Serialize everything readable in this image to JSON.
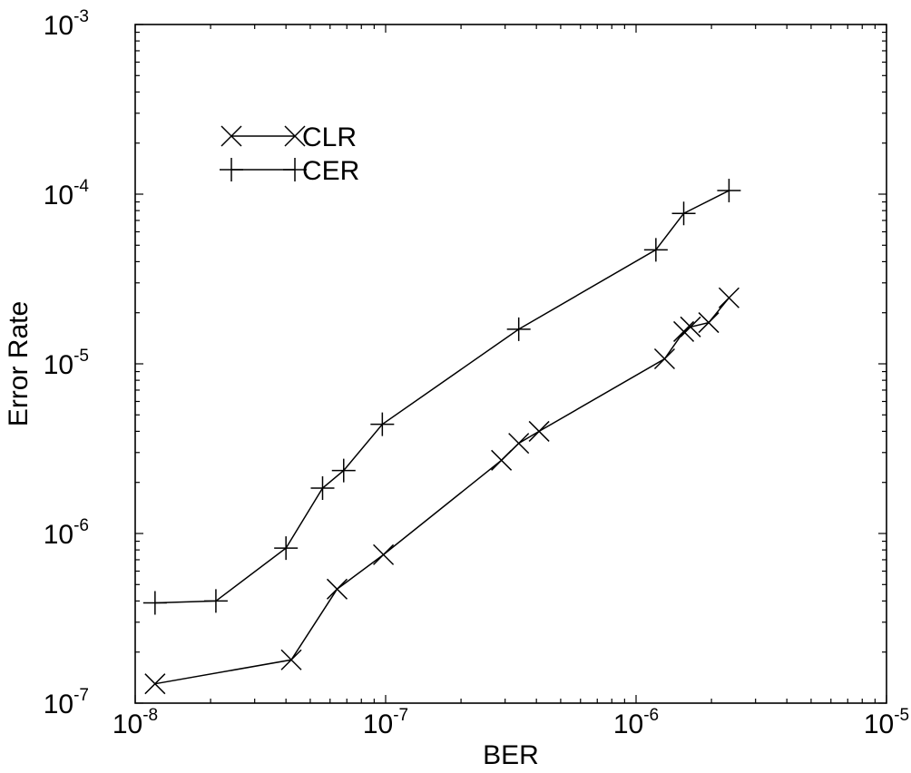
{
  "chart_data": {
    "type": "line",
    "xscale": "log",
    "yscale": "log",
    "xlabel": "BER",
    "ylabel": "Error Rate",
    "xlim": [
      1e-08,
      1e-05
    ],
    "ylim": [
      1e-07,
      0.001
    ],
    "grid": false,
    "legend_position": "top-left",
    "xticks": [
      {
        "value": 1e-08,
        "base": "10",
        "exp": "-8"
      },
      {
        "value": 1e-07,
        "base": "10",
        "exp": "-7"
      },
      {
        "value": 1e-06,
        "base": "10",
        "exp": "-6"
      },
      {
        "value": 1e-05,
        "base": "10",
        "exp": "-5"
      }
    ],
    "yticks": [
      {
        "value": 1e-07,
        "base": "10",
        "exp": "-7"
      },
      {
        "value": 1e-06,
        "base": "10",
        "exp": "-6"
      },
      {
        "value": 1e-05,
        "base": "10",
        "exp": "-5"
      },
      {
        "value": 0.0001,
        "base": "10",
        "exp": "-4"
      },
      {
        "value": 0.001,
        "base": "10",
        "exp": "-3"
      }
    ],
    "series": [
      {
        "name": "CLR",
        "marker": "x",
        "color": "#000000",
        "points": [
          {
            "x": 1.2e-08,
            "y": 1.3e-07
          },
          {
            "x": 4.2e-08,
            "y": 1.8e-07
          },
          {
            "x": 6.4e-08,
            "y": 4.7e-07
          },
          {
            "x": 9.8e-08,
            "y": 7.5e-07
          },
          {
            "x": 2.9e-07,
            "y": 2.7e-06
          },
          {
            "x": 3.4e-07,
            "y": 3.4e-06
          },
          {
            "x": 4.1e-07,
            "y": 4e-06
          },
          {
            "x": 1.3e-06,
            "y": 1.07e-05
          },
          {
            "x": 1.55e-06,
            "y": 1.55e-05
          },
          {
            "x": 1.65e-06,
            "y": 1.65e-05
          },
          {
            "x": 1.95e-06,
            "y": 1.75e-05
          },
          {
            "x": 2.35e-06,
            "y": 2.45e-05
          }
        ]
      },
      {
        "name": "CER",
        "marker": "+",
        "color": "#000000",
        "points": [
          {
            "x": 1.2e-08,
            "y": 3.9e-07
          },
          {
            "x": 2.1e-08,
            "y": 4e-07
          },
          {
            "x": 4e-08,
            "y": 8.2e-07
          },
          {
            "x": 5.6e-08,
            "y": 1.85e-06
          },
          {
            "x": 6.8e-08,
            "y": 2.35e-06
          },
          {
            "x": 9.7e-08,
            "y": 4.4e-06
          },
          {
            "x": 3.4e-07,
            "y": 1.6e-05
          },
          {
            "x": 1.2e-06,
            "y": 4.7e-05
          },
          {
            "x": 1.55e-06,
            "y": 7.7e-05
          },
          {
            "x": 2.35e-06,
            "y": 0.000105
          }
        ]
      }
    ]
  }
}
